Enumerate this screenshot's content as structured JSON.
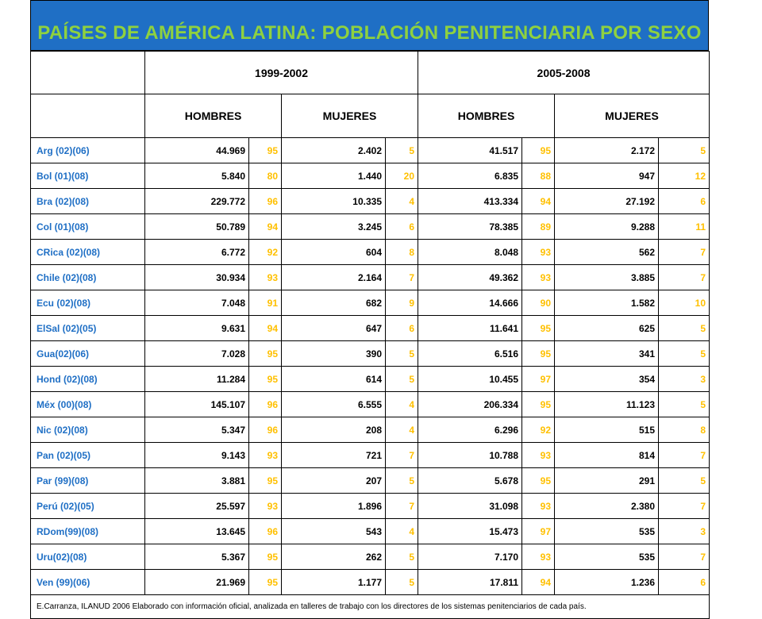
{
  "title": "PAÍSES DE AMÉRICA LATINA: POBLACIÓN PENITENCIARIA POR SEXO",
  "periods": [
    "1999-2002",
    "2005-2008"
  ],
  "sex_headers": [
    "HOMBRES",
    "MUJERES",
    "HOMBRES",
    "MUJERES"
  ],
  "rows": [
    {
      "country": "Arg (02)(06)",
      "h1": "44.969",
      "hp1": "95",
      "m1": "2.402",
      "mp1": "5",
      "h2": "41.517",
      "hp2": "95",
      "m2": "2.172",
      "mp2": "5"
    },
    {
      "country": "Bol (01)(08)",
      "h1": "5.840",
      "hp1": "80",
      "m1": "1.440",
      "mp1": "20",
      "h2": "6.835",
      "hp2": "88",
      "m2": "947",
      "mp2": "12"
    },
    {
      "country": "Bra (02)(08)",
      "h1": "229.772",
      "hp1": "96",
      "m1": "10.335",
      "mp1": "4",
      "h2": "413.334",
      "hp2": "94",
      "m2": "27.192",
      "mp2": "6"
    },
    {
      "country": "Col (01)(08)",
      "h1": "50.789",
      "hp1": "94",
      "m1": "3.245",
      "mp1": "6",
      "h2": "78.385",
      "hp2": "89",
      "m2": "9.288",
      "mp2": "11"
    },
    {
      "country": "CRica (02)(08)",
      "h1": "6.772",
      "hp1": "92",
      "m1": "604",
      "mp1": "8",
      "h2": "8.048",
      "hp2": "93",
      "m2": "562",
      "mp2": "7"
    },
    {
      "country": "Chile (02)(08)",
      "h1": "30.934",
      "hp1": "93",
      "m1": "2.164",
      "mp1": "7",
      "h2": "49.362",
      "hp2": "93",
      "m2": "3.885",
      "mp2": "7"
    },
    {
      "country": "Ecu (02)(08)",
      "h1": "7.048",
      "hp1": "91",
      "m1": "682",
      "mp1": "9",
      "h2": "14.666",
      "hp2": "90",
      "m2": "1.582",
      "mp2": "10"
    },
    {
      "country": "ElSal (02)(05)",
      "h1": "9.631",
      "hp1": "94",
      "m1": "647",
      "mp1": "6",
      "h2": "11.641",
      "hp2": "95",
      "m2": "625",
      "mp2": "5"
    },
    {
      "country": "Gua(02)(06)",
      "h1": "7.028",
      "hp1": "95",
      "m1": "390",
      "mp1": "5",
      "h2": "6.516",
      "hp2": "95",
      "m2": "341",
      "mp2": "5"
    },
    {
      "country": "Hond (02)(08)",
      "h1": "11.284",
      "hp1": "95",
      "m1": "614",
      "mp1": "5",
      "h2": "10.455",
      "hp2": "97",
      "m2": "354",
      "mp2": "3"
    },
    {
      "country": "Méx (00)(08)",
      "h1": "145.107",
      "hp1": "96",
      "m1": "6.555",
      "mp1": "4",
      "h2": "206.334",
      "hp2": "95",
      "m2": "11.123",
      "mp2": "5"
    },
    {
      "country": "Nic (02)(08)",
      "h1": "5.347",
      "hp1": "96",
      "m1": "208",
      "mp1": "4",
      "h2": "6.296",
      "hp2": "92",
      "m2": "515",
      "mp2": "8"
    },
    {
      "country": "Pan (02)(05)",
      "h1": "9.143",
      "hp1": "93",
      "m1": "721",
      "mp1": "7",
      "h2": "10.788",
      "hp2": "93",
      "m2": "814",
      "mp2": "7"
    },
    {
      "country": "Par (99)(08)",
      "h1": "3.881",
      "hp1": "95",
      "m1": "207",
      "mp1": "5",
      "h2": "5.678",
      "hp2": "95",
      "m2": "291",
      "mp2": "5"
    },
    {
      "country": "Perú (02)(05)",
      "h1": "25.597",
      "hp1": "93",
      "m1": "1.896",
      "mp1": "7",
      "h2": "31.098",
      "hp2": "93",
      "m2": "2.380",
      "mp2": "7"
    },
    {
      "country": "RDom(99)(08)",
      "h1": "13.645",
      "hp1": "96",
      "m1": "543",
      "mp1": "4",
      "h2": "15.473",
      "hp2": "97",
      "m2": "535",
      "mp2": "3"
    },
    {
      "country": "Uru(02)(08)",
      "h1": "5.367",
      "hp1": "95",
      "m1": "262",
      "mp1": "5",
      "h2": "7.170",
      "hp2": "93",
      "m2": "535",
      "mp2": "7"
    },
    {
      "country": "Ven (99)(06)",
      "h1": "21.969",
      "hp1": "95",
      "m1": "1.177",
      "mp1": "5",
      "h2": "17.811",
      "hp2": "94",
      "m2": "1.236",
      "mp2": "6"
    }
  ],
  "footnote": "E.Carranza,  ILANUD 2006 Elaborado con información oficial, analizada  en talleres de trabajo con los directores de los sistemas  penitenciarios de  cada país.",
  "colors": {
    "title_bar": "#1f6fc5",
    "title_text": "#8fd13f",
    "country_text": "#1f6fc5",
    "percent_text": "#ffc000"
  }
}
